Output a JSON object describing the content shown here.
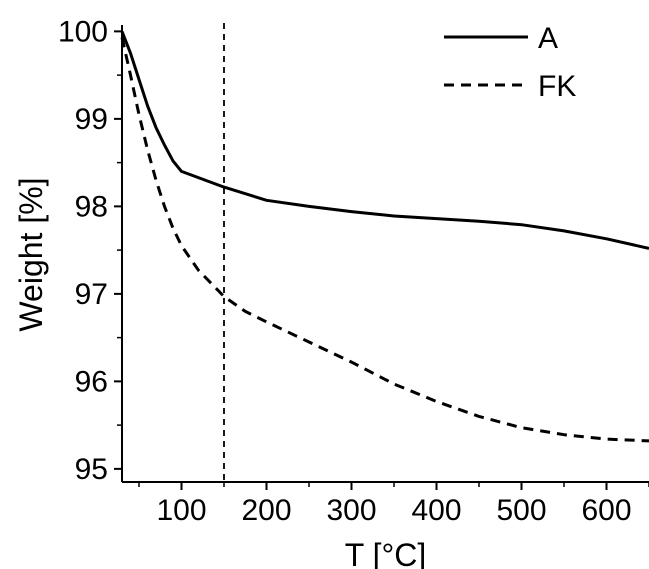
{
  "chart_data": {
    "type": "line",
    "xlabel": "T [°C]",
    "ylabel": "Weight [%]",
    "xlim": [
      30,
      650
    ],
    "ylim": [
      94.85,
      100.05
    ],
    "xticks": [
      100,
      200,
      300,
      400,
      500,
      600
    ],
    "yticks": [
      95,
      96,
      97,
      98,
      99,
      100
    ],
    "grid": false,
    "legend_position": "top-right",
    "reference_line": {
      "x": 150,
      "style": "dashed"
    },
    "series": [
      {
        "name": "A",
        "line_style": "solid",
        "color": "#000000",
        "x": [
          30,
          40,
          50,
          60,
          70,
          80,
          90,
          100,
          150,
          200,
          250,
          300,
          350,
          400,
          450,
          500,
          550,
          600,
          650
        ],
        "y": [
          100,
          99.75,
          99.45,
          99.15,
          98.9,
          98.7,
          98.52,
          98.4,
          98.22,
          98.07,
          98.0,
          97.94,
          97.89,
          97.86,
          97.83,
          97.79,
          97.72,
          97.63,
          97.52
        ]
      },
      {
        "name": "FK",
        "line_style": "dashed",
        "color": "#000000",
        "x": [
          30,
          40,
          50,
          60,
          70,
          80,
          90,
          100,
          120,
          150,
          175,
          200,
          250,
          300,
          350,
          400,
          450,
          500,
          550,
          600,
          650
        ],
        "y": [
          99.93,
          99.5,
          99.05,
          98.65,
          98.3,
          98.0,
          97.75,
          97.55,
          97.27,
          96.97,
          96.8,
          96.68,
          96.45,
          96.22,
          95.97,
          95.77,
          95.6,
          95.47,
          95.39,
          95.34,
          95.32
        ]
      }
    ]
  }
}
